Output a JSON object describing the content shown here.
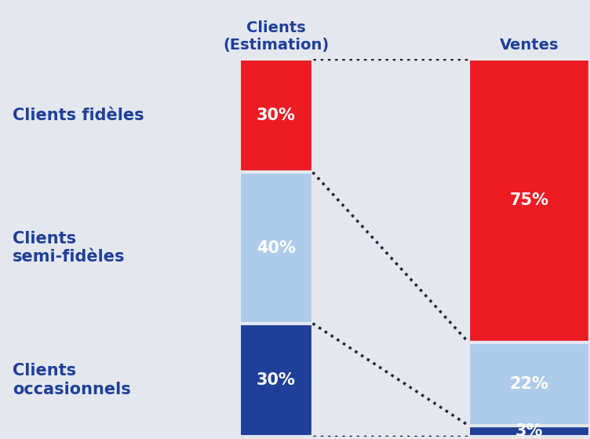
{
  "chart_data": {
    "type": "bar",
    "stacked": true,
    "data_labels": true,
    "tick_labels": "x",
    "categories": [
      "Clients\n(Estimation)",
      "Ventes"
    ],
    "ylim": [
      0,
      100
    ],
    "series": [
      {
        "name": "Clients fidèles",
        "color": "#ed1c24",
        "values": [
          30,
          75
        ],
        "value_labels": [
          "30%",
          "75%"
        ]
      },
      {
        "name": "Clients\nsemi-fidèles",
        "color": "#aecbea",
        "values": [
          40,
          22
        ],
        "value_labels": [
          "40%",
          "22%"
        ]
      },
      {
        "name": "Clients\noccasionnels",
        "color": "#1f3f99",
        "values": [
          30,
          3
        ],
        "value_labels": [
          "30%",
          "3%"
        ]
      }
    ]
  }
}
